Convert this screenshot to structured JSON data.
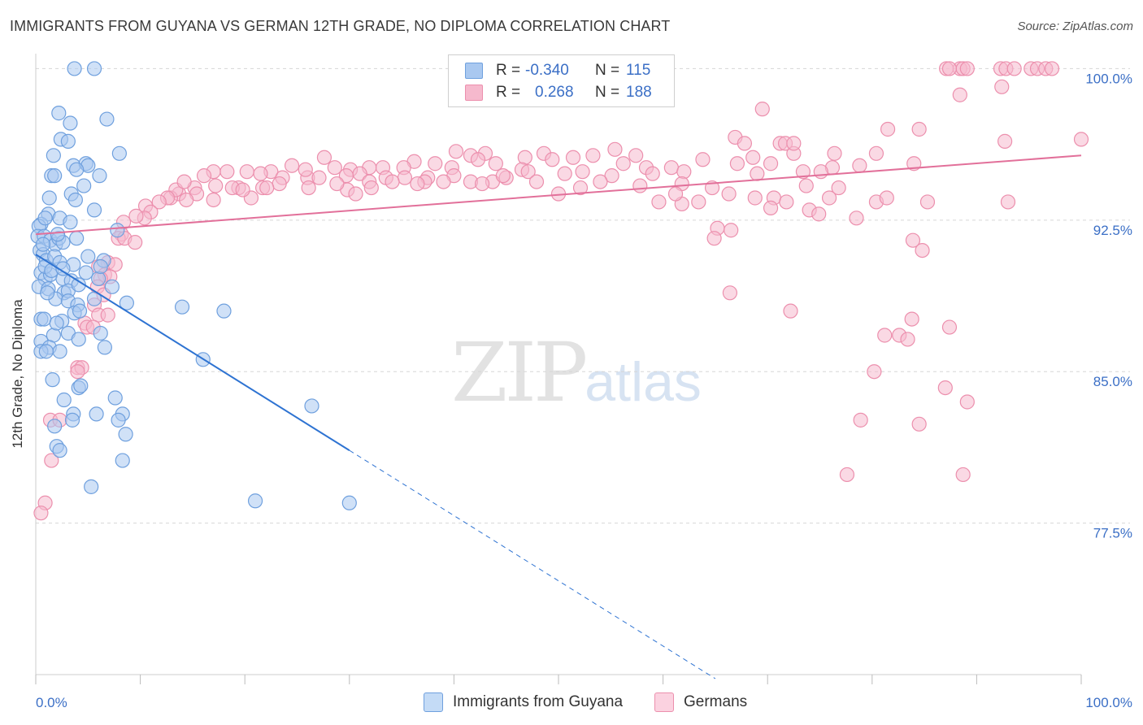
{
  "header": {
    "title": "IMMIGRANTS FROM GUYANA VS GERMAN 12TH GRADE, NO DIPLOMA CORRELATION CHART",
    "source": "Source: ZipAtlas.com"
  },
  "legend": {
    "series": [
      {
        "r_label": "R =",
        "r_value": "-0.340",
        "n_label": "N =",
        "n_value": "115"
      },
      {
        "r_label": "R =",
        "r_value": "0.268",
        "n_label": "N =",
        "n_value": "188"
      }
    ]
  },
  "watermark": {
    "part1": "ZIP",
    "part2": "atlas"
  },
  "colors": {
    "blue_fill": "#a9c8f0",
    "blue_stroke": "#6fa0de",
    "blue_line": "#2e73d2",
    "pink_fill": "#f6b9cd",
    "pink_stroke": "#ec8fad",
    "pink_line": "#e2709a",
    "grid": "#d6d6d6",
    "tick_label": "#3b6fc6"
  },
  "chart_data": {
    "type": "scatter",
    "title": "IMMIGRANTS FROM GUYANA VS GERMAN 12TH GRADE, NO DIPLOMA CORRELATION CHART",
    "xlabel": "",
    "ylabel": "12th Grade, No Diploma",
    "xlim": [
      0,
      100
    ],
    "ylim": [
      70.0,
      100.5
    ],
    "x_tick_labels": [
      "0.0%",
      "100.0%"
    ],
    "y_ticks": [
      77.5,
      85.0,
      92.5,
      100.0
    ],
    "y_tick_labels": [
      "77.5%",
      "85.0%",
      "92.5%",
      "100.0%"
    ],
    "grid": true,
    "legend_position": "bottom",
    "series": [
      {
        "name": "Immigrants from Guyana",
        "color": "#6fa0de",
        "trend": {
          "x0": 0,
          "y0": 90.8,
          "x1": 30,
          "y1": 81.1,
          "dash_to_x": 65,
          "dash_to_y": 69.8
        },
        "points": [
          [
            3.7,
            100.0
          ],
          [
            5.6,
            100.0
          ],
          [
            2.2,
            97.8
          ],
          [
            6.8,
            97.5
          ],
          [
            3.3,
            97.3
          ],
          [
            2.4,
            96.5
          ],
          [
            3.1,
            96.4
          ],
          [
            8.0,
            95.8
          ],
          [
            1.7,
            95.7
          ],
          [
            3.6,
            95.2
          ],
          [
            4.8,
            95.3
          ],
          [
            5.0,
            95.2
          ],
          [
            1.5,
            94.7
          ],
          [
            1.8,
            94.7
          ],
          [
            3.9,
            95.0
          ],
          [
            6.1,
            94.7
          ],
          [
            4.6,
            94.2
          ],
          [
            3.4,
            93.8
          ],
          [
            1.3,
            93.6
          ],
          [
            3.8,
            93.5
          ],
          [
            5.6,
            93.0
          ],
          [
            1.2,
            92.8
          ],
          [
            0.5,
            92.3
          ],
          [
            0.3,
            92.2
          ],
          [
            2.3,
            92.6
          ],
          [
            3.3,
            92.4
          ],
          [
            7.8,
            92.0
          ],
          [
            0.2,
            91.7
          ],
          [
            0.8,
            91.7
          ],
          [
            1.4,
            91.5
          ],
          [
            1.9,
            91.3
          ],
          [
            2.2,
            91.6
          ],
          [
            2.6,
            91.4
          ],
          [
            3.9,
            91.6
          ],
          [
            0.4,
            91.0
          ],
          [
            0.7,
            90.8
          ],
          [
            1.0,
            90.5
          ],
          [
            1.8,
            90.7
          ],
          [
            2.3,
            90.4
          ],
          [
            3.6,
            90.3
          ],
          [
            5.0,
            90.7
          ],
          [
            6.5,
            90.5
          ],
          [
            0.5,
            89.9
          ],
          [
            0.9,
            89.6
          ],
          [
            1.4,
            89.8
          ],
          [
            2.6,
            89.6
          ],
          [
            3.4,
            89.5
          ],
          [
            6.0,
            89.6
          ],
          [
            0.3,
            89.2
          ],
          [
            1.2,
            89.1
          ],
          [
            2.7,
            88.9
          ],
          [
            3.1,
            89.0
          ],
          [
            4.1,
            89.3
          ],
          [
            7.3,
            89.2
          ],
          [
            1.9,
            88.6
          ],
          [
            3.1,
            88.5
          ],
          [
            4.0,
            88.3
          ],
          [
            5.6,
            88.6
          ],
          [
            8.7,
            88.4
          ],
          [
            14.0,
            88.2
          ],
          [
            18.0,
            88.0
          ],
          [
            0.5,
            87.6
          ],
          [
            0.8,
            87.6
          ],
          [
            2.5,
            87.5
          ],
          [
            3.7,
            87.9
          ],
          [
            1.7,
            86.8
          ],
          [
            3.1,
            86.9
          ],
          [
            4.1,
            86.6
          ],
          [
            6.2,
            86.9
          ],
          [
            0.5,
            86.5
          ],
          [
            1.3,
            86.2
          ],
          [
            2.3,
            86.0
          ],
          [
            6.6,
            86.2
          ],
          [
            0.5,
            86.0
          ],
          [
            1.0,
            86.0
          ],
          [
            16.0,
            85.6
          ],
          [
            1.6,
            84.6
          ],
          [
            4.1,
            84.2
          ],
          [
            4.3,
            84.3
          ],
          [
            2.7,
            83.6
          ],
          [
            7.6,
            83.7
          ],
          [
            26.4,
            83.3
          ],
          [
            3.6,
            82.9
          ],
          [
            5.8,
            82.9
          ],
          [
            8.3,
            82.9
          ],
          [
            3.5,
            82.6
          ],
          [
            7.9,
            82.6
          ],
          [
            1.8,
            82.3
          ],
          [
            8.6,
            81.9
          ],
          [
            2.0,
            81.3
          ],
          [
            2.3,
            81.1
          ],
          [
            8.3,
            80.6
          ],
          [
            5.3,
            79.3
          ],
          [
            21.0,
            78.6
          ],
          [
            30.0,
            78.5
          ],
          [
            0.9,
            90.2
          ],
          [
            1.5,
            90.0
          ],
          [
            2.6,
            90.1
          ],
          [
            4.8,
            89.9
          ],
          [
            0.7,
            91.3
          ],
          [
            1.1,
            88.9
          ],
          [
            2.0,
            87.4
          ],
          [
            4.2,
            88.0
          ],
          [
            6.2,
            90.2
          ],
          [
            0.9,
            92.6
          ],
          [
            2.1,
            91.8
          ]
        ]
      },
      {
        "name": "Germans",
        "color": "#ec8fad",
        "trend": {
          "x0": 0,
          "y0": 91.8,
          "x1": 100,
          "y1": 95.7
        },
        "points": [
          [
            87.1,
            100.0
          ],
          [
            88.4,
            100.0
          ],
          [
            88.7,
            100.0
          ],
          [
            89.1,
            100.0
          ],
          [
            92.3,
            100.0
          ],
          [
            92.8,
            100.0
          ],
          [
            93.6,
            100.0
          ],
          [
            95.2,
            100.0
          ],
          [
            95.8,
            100.0
          ],
          [
            96.6,
            100.0
          ],
          [
            97.2,
            100.0
          ],
          [
            92.4,
            99.1
          ],
          [
            88.4,
            98.7
          ],
          [
            87.4,
            100.0
          ],
          [
            69.5,
            98.0
          ],
          [
            81.5,
            97.0
          ],
          [
            84.5,
            97.0
          ],
          [
            66.9,
            96.6
          ],
          [
            67.8,
            96.3
          ],
          [
            71.2,
            96.3
          ],
          [
            71.7,
            96.3
          ],
          [
            92.7,
            96.4
          ],
          [
            100.0,
            96.5
          ],
          [
            55.4,
            96.0
          ],
          [
            72.5,
            95.8
          ],
          [
            76.4,
            95.8
          ],
          [
            80.4,
            95.8
          ],
          [
            68.6,
            95.6
          ],
          [
            67.1,
            95.3
          ],
          [
            63.8,
            95.5
          ],
          [
            70.3,
            95.3
          ],
          [
            72.5,
            96.3
          ],
          [
            57.4,
            95.7
          ],
          [
            53.3,
            95.7
          ],
          [
            56.2,
            95.3
          ],
          [
            48.6,
            95.8
          ],
          [
            41.6,
            95.7
          ],
          [
            40.2,
            95.9
          ],
          [
            43.0,
            95.8
          ],
          [
            46.8,
            95.6
          ],
          [
            49.4,
            95.5
          ],
          [
            51.4,
            95.6
          ],
          [
            60.8,
            95.1
          ],
          [
            58.4,
            95.1
          ],
          [
            52.3,
            94.9
          ],
          [
            55.1,
            94.7
          ],
          [
            50.6,
            94.8
          ],
          [
            46.5,
            95.0
          ],
          [
            44.0,
            95.3
          ],
          [
            42.3,
            95.5
          ],
          [
            39.8,
            95.1
          ],
          [
            38.2,
            95.3
          ],
          [
            36.2,
            95.4
          ],
          [
            35.2,
            95.1
          ],
          [
            33.2,
            95.1
          ],
          [
            31.9,
            95.1
          ],
          [
            27.6,
            95.6
          ],
          [
            28.6,
            95.1
          ],
          [
            30.1,
            95.0
          ],
          [
            24.5,
            95.2
          ],
          [
            22.5,
            94.9
          ],
          [
            21.5,
            94.8
          ],
          [
            20.2,
            94.9
          ],
          [
            18.3,
            94.9
          ],
          [
            17.0,
            94.9
          ],
          [
            16.1,
            94.7
          ],
          [
            23.6,
            94.6
          ],
          [
            26.0,
            94.6
          ],
          [
            27.1,
            94.6
          ],
          [
            25.8,
            95.0
          ],
          [
            29.7,
            94.7
          ],
          [
            31.0,
            94.8
          ],
          [
            33.5,
            94.6
          ],
          [
            35.3,
            94.6
          ],
          [
            37.5,
            94.6
          ],
          [
            40.0,
            94.7
          ],
          [
            45.0,
            94.6
          ],
          [
            47.1,
            94.9
          ],
          [
            41.6,
            94.4
          ],
          [
            43.7,
            94.4
          ],
          [
            37.2,
            94.4
          ],
          [
            31.9,
            94.4
          ],
          [
            29.8,
            94.0
          ],
          [
            23.3,
            94.3
          ],
          [
            21.7,
            94.1
          ],
          [
            19.4,
            94.1
          ],
          [
            17.2,
            94.2
          ],
          [
            15.2,
            94.1
          ],
          [
            15.4,
            93.8
          ],
          [
            13.7,
            93.8
          ],
          [
            12.9,
            93.6
          ],
          [
            13.4,
            94.0
          ],
          [
            14.2,
            94.4
          ],
          [
            12.6,
            93.6
          ],
          [
            18.8,
            94.1
          ],
          [
            20.6,
            93.6
          ],
          [
            17.0,
            93.5
          ],
          [
            14.4,
            93.5
          ],
          [
            11.8,
            93.4
          ],
          [
            10.5,
            93.2
          ],
          [
            11.0,
            92.9
          ],
          [
            10.4,
            92.6
          ],
          [
            9.6,
            92.7
          ],
          [
            8.4,
            92.4
          ],
          [
            8.2,
            91.8
          ],
          [
            7.9,
            91.6
          ],
          [
            8.5,
            91.6
          ],
          [
            9.5,
            91.4
          ],
          [
            6.9,
            90.4
          ],
          [
            7.6,
            90.3
          ],
          [
            6.0,
            90.2
          ],
          [
            6.6,
            89.8
          ],
          [
            7.1,
            89.7
          ],
          [
            6.2,
            89.6
          ],
          [
            5.9,
            89.2
          ],
          [
            6.5,
            88.8
          ],
          [
            5.6,
            88.3
          ],
          [
            6.0,
            87.8
          ],
          [
            6.9,
            87.8
          ],
          [
            4.7,
            87.4
          ],
          [
            4.9,
            87.2
          ],
          [
            5.5,
            87.2
          ],
          [
            4.0,
            85.2
          ],
          [
            4.4,
            85.2
          ],
          [
            4.0,
            85.0
          ],
          [
            1.4,
            82.6
          ],
          [
            2.3,
            82.6
          ],
          [
            1.5,
            80.6
          ],
          [
            0.9,
            78.5
          ],
          [
            0.5,
            78.0
          ],
          [
            59.0,
            94.8
          ],
          [
            62.0,
            94.9
          ],
          [
            61.8,
            94.3
          ],
          [
            64.7,
            94.1
          ],
          [
            66.3,
            93.8
          ],
          [
            57.8,
            94.2
          ],
          [
            54.0,
            94.4
          ],
          [
            52.1,
            94.1
          ],
          [
            50.0,
            93.8
          ],
          [
            47.9,
            94.4
          ],
          [
            44.7,
            94.7
          ],
          [
            42.7,
            94.3
          ],
          [
            39.0,
            94.4
          ],
          [
            36.5,
            94.3
          ],
          [
            34.1,
            94.4
          ],
          [
            32.1,
            94.1
          ],
          [
            30.6,
            93.8
          ],
          [
            28.8,
            94.3
          ],
          [
            26.1,
            94.1
          ],
          [
            22.1,
            94.1
          ],
          [
            19.8,
            94.0
          ],
          [
            76.2,
            95.1
          ],
          [
            78.8,
            95.2
          ],
          [
            84.0,
            95.3
          ],
          [
            73.4,
            94.9
          ],
          [
            75.1,
            94.9
          ],
          [
            69.0,
            94.8
          ],
          [
            73.7,
            94.2
          ],
          [
            76.8,
            94.1
          ],
          [
            68.8,
            93.6
          ],
          [
            70.6,
            93.6
          ],
          [
            71.8,
            93.4
          ],
          [
            74.0,
            93.0
          ],
          [
            74.9,
            92.8
          ],
          [
            78.5,
            92.6
          ],
          [
            80.4,
            93.4
          ],
          [
            81.4,
            93.6
          ],
          [
            85.3,
            93.4
          ],
          [
            93.0,
            93.4
          ],
          [
            70.3,
            93.1
          ],
          [
            75.9,
            93.6
          ],
          [
            84.8,
            91.0
          ],
          [
            83.9,
            91.5
          ],
          [
            65.2,
            92.1
          ],
          [
            64.9,
            91.6
          ],
          [
            66.5,
            92.0
          ],
          [
            59.6,
            93.4
          ],
          [
            61.8,
            93.3
          ],
          [
            63.4,
            93.4
          ],
          [
            61.2,
            93.8
          ],
          [
            72.2,
            88.0
          ],
          [
            66.4,
            88.9
          ],
          [
            81.2,
            86.8
          ],
          [
            82.6,
            86.8
          ],
          [
            83.4,
            86.6
          ],
          [
            83.8,
            87.6
          ],
          [
            87.4,
            87.2
          ],
          [
            80.2,
            85.0
          ],
          [
            87.0,
            84.2
          ],
          [
            89.1,
            83.5
          ],
          [
            78.9,
            82.6
          ],
          [
            84.5,
            82.4
          ],
          [
            77.6,
            79.9
          ],
          [
            88.7,
            79.9
          ]
        ]
      }
    ]
  },
  "labels": {
    "ylabel": "12th Grade, No Diploma",
    "x_left": "0.0%",
    "x_right": "100.0%",
    "series1": "Immigrants from Guyana",
    "series2": "Germans"
  }
}
